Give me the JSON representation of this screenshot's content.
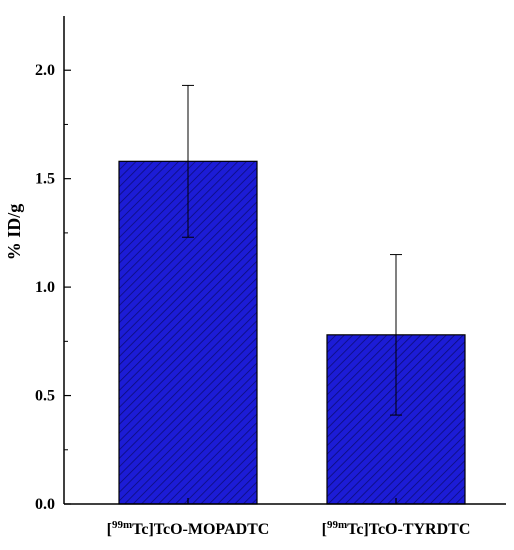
{
  "chart_data": {
    "type": "bar",
    "categories": [
      {
        "isotope": "99m",
        "prefix": "[",
        "element": "Tc",
        "suffix": "]TcO-MOPADTC"
      },
      {
        "isotope": "99m",
        "prefix": "[",
        "element": "Tc",
        "suffix": "]TcO-TYRDTC"
      }
    ],
    "values": [
      1.58,
      0.78
    ],
    "errors": [
      0.35,
      0.37
    ],
    "ylabel": "% ID/g",
    "xlabel": "",
    "ylim": [
      0,
      2.25
    ],
    "yticks": [
      "0.0",
      "0.5",
      "1.0",
      "1.5",
      "2.0"
    ],
    "ytick_values": [
      0,
      0.5,
      1.0,
      1.5,
      2.0
    ],
    "grid": false,
    "bar_color": "#1c1cd6",
    "bar_hatch_color": "#0c0c7a",
    "pattern": "diagonal-hatch"
  }
}
